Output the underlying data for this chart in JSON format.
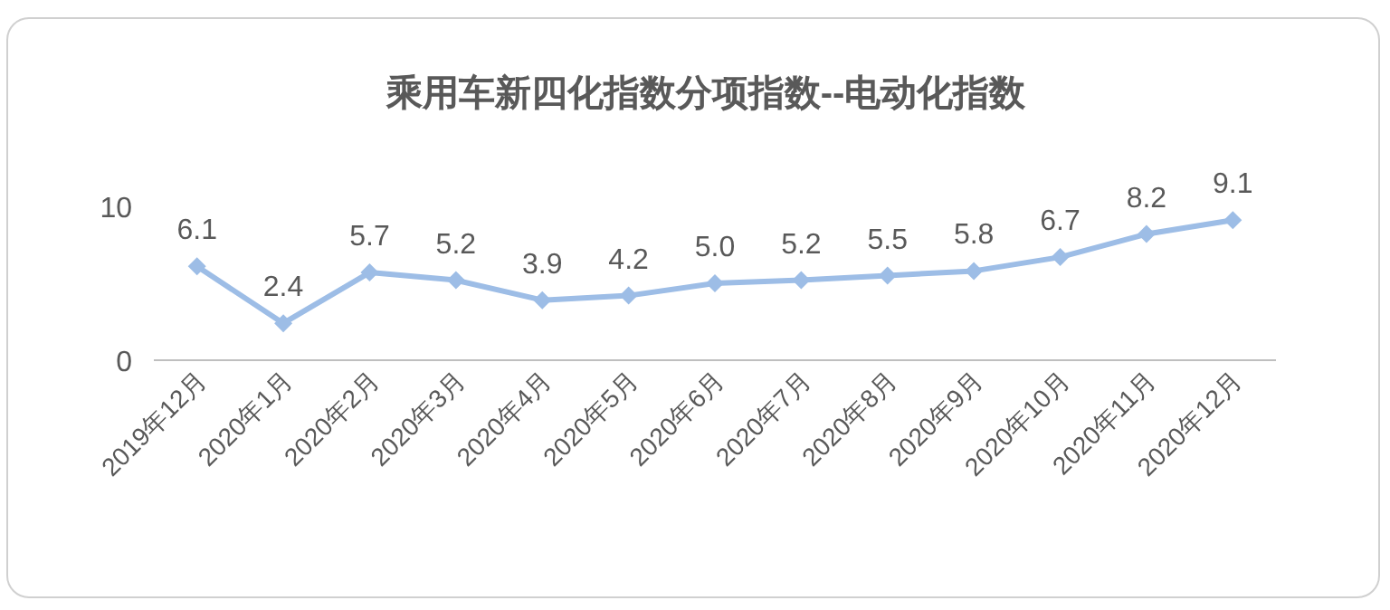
{
  "chart_data": {
    "type": "line",
    "title": "乘用车新四化指数分项指数--电动化指数",
    "categories": [
      "2019年12月",
      "2020年1月",
      "2020年2月",
      "2020年3月",
      "2020年4月",
      "2020年5月",
      "2020年6月",
      "2020年7月",
      "2020年8月",
      "2020年9月",
      "2020年10月",
      "2020年11月",
      "2020年12月"
    ],
    "values": [
      6.1,
      2.4,
      5.7,
      5.2,
      3.9,
      4.2,
      5.0,
      5.2,
      5.5,
      5.8,
      6.7,
      8.2,
      9.1
    ],
    "value_labels": [
      "6.1",
      "2.4",
      "5.7",
      "5.2",
      "3.9",
      "4.2",
      "5.0",
      "5.2",
      "5.5",
      "5.8",
      "6.7",
      "8.2",
      "9.1"
    ],
    "color": "#9dbde6",
    "marker": "diamond",
    "ylim": [
      0,
      10
    ],
    "yticks": [
      0,
      10
    ]
  }
}
